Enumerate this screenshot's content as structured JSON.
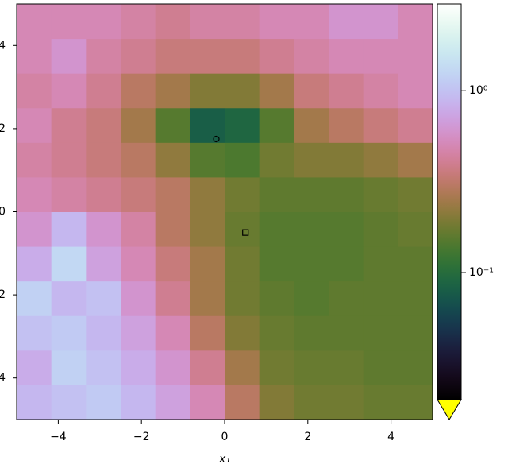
{
  "chart_data": {
    "type": "heatmap",
    "colormap": "cubehelix",
    "color_scale": "log",
    "xlabel": "x₁",
    "xlim": [
      -5,
      5
    ],
    "ylim": [
      -5,
      5
    ],
    "xticks": [
      {
        "value": -4,
        "label": "−4"
      },
      {
        "value": -2,
        "label": "−2"
      },
      0,
      2,
      4
    ],
    "yticks": [
      {
        "value": -4,
        "label": "−4"
      },
      {
        "value": -2,
        "label": "−2"
      },
      0,
      2,
      4
    ],
    "x_edges": [
      -5,
      -4.1667,
      -3.3333,
      -2.5,
      -1.6667,
      -0.8333,
      0,
      0.8333,
      1.6667,
      2.5,
      3.3333,
      4.1667,
      5
    ],
    "y_edges": [
      -5,
      -4.1667,
      -3.3333,
      -2.5,
      -1.6667,
      -0.8333,
      0,
      0.8333,
      1.6667,
      2.5,
      3.3333,
      4.1667,
      5
    ],
    "z": [
      [
        0.9,
        1.0,
        1.1,
        0.9,
        0.7,
        0.5,
        0.3,
        0.2,
        0.18,
        0.18,
        0.17,
        0.17
      ],
      [
        0.8,
        1.2,
        1.0,
        0.8,
        0.6,
        0.4,
        0.25,
        0.18,
        0.17,
        0.17,
        0.16,
        0.16
      ],
      [
        1.0,
        1.1,
        0.9,
        0.7,
        0.5,
        0.3,
        0.2,
        0.17,
        0.16,
        0.16,
        0.16,
        0.16
      ],
      [
        1.2,
        0.9,
        1.0,
        0.6,
        0.4,
        0.25,
        0.18,
        0.16,
        0.15,
        0.16,
        0.16,
        0.16
      ],
      [
        0.8,
        1.3,
        0.7,
        0.5,
        0.35,
        0.25,
        0.18,
        0.15,
        0.15,
        0.15,
        0.16,
        0.16
      ],
      [
        0.6,
        0.9,
        0.6,
        0.45,
        0.3,
        0.22,
        0.17,
        0.15,
        0.15,
        0.15,
        0.16,
        0.17
      ],
      [
        0.5,
        0.45,
        0.4,
        0.35,
        0.3,
        0.22,
        0.18,
        0.16,
        0.16,
        0.16,
        0.17,
        0.18
      ],
      [
        0.45,
        0.4,
        0.35,
        0.3,
        0.22,
        0.15,
        0.14,
        0.18,
        0.2,
        0.2,
        0.22,
        0.25
      ],
      [
        0.5,
        0.4,
        0.35,
        0.25,
        0.15,
        0.08,
        0.09,
        0.15,
        0.25,
        0.3,
        0.35,
        0.4
      ],
      [
        0.45,
        0.5,
        0.4,
        0.3,
        0.25,
        0.2,
        0.2,
        0.25,
        0.35,
        0.4,
        0.45,
        0.5
      ],
      [
        0.5,
        0.6,
        0.45,
        0.4,
        0.35,
        0.35,
        0.35,
        0.4,
        0.45,
        0.5,
        0.5,
        0.5
      ],
      [
        0.5,
        0.5,
        0.5,
        0.45,
        0.4,
        0.45,
        0.45,
        0.5,
        0.5,
        0.6,
        0.6,
        0.5
      ]
    ],
    "markers": [
      {
        "shape": "circle",
        "x": -0.2,
        "y": 1.75
      },
      {
        "shape": "square",
        "x": 0.5,
        "y": -0.5
      }
    ],
    "colorbar": {
      "lim": [
        0.02,
        3
      ],
      "extend_min_color": "#ffff00",
      "ticks": [
        {
          "value": 1,
          "label": "10⁰"
        },
        {
          "value": 0.1,
          "label": "10⁻¹"
        }
      ]
    }
  }
}
